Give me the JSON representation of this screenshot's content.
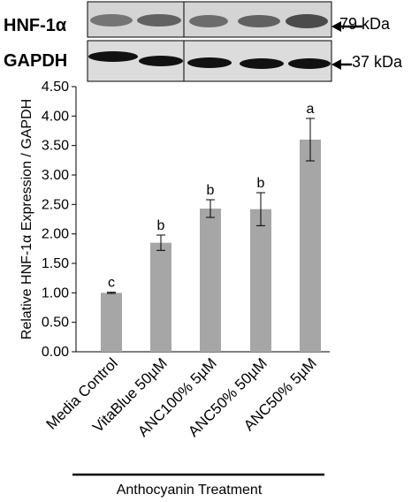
{
  "blot": {
    "rows": [
      {
        "protein": "HNF-1α",
        "size": "79 kDa"
      },
      {
        "protein": "GAPDH",
        "size": "37 kDa"
      }
    ]
  },
  "chart_data": {
    "type": "bar",
    "categories": [
      "Media Control",
      "VitaBlue 50µM",
      "ANC100% 5µM",
      "ANC50% 50µM",
      "ANC50% 5µM"
    ],
    "values": [
      1.0,
      1.85,
      2.43,
      2.42,
      3.6
    ],
    "errors": [
      0.01,
      0.13,
      0.15,
      0.28,
      0.36
    ],
    "significance": [
      "c",
      "b",
      "b",
      "b",
      "a"
    ],
    "ylabel": "Relative HNF-1α Expression / GAPDH",
    "xlabel": "Anthocyanin Treatment",
    "ylim": [
      0,
      4.5
    ],
    "yticks": [
      "0.00",
      "0.50",
      "1.00",
      "1.50",
      "2.00",
      "2.50",
      "3.00",
      "3.50",
      "4.00",
      "4.50"
    ],
    "grid": false,
    "bar_color": "#a6a6a6"
  }
}
